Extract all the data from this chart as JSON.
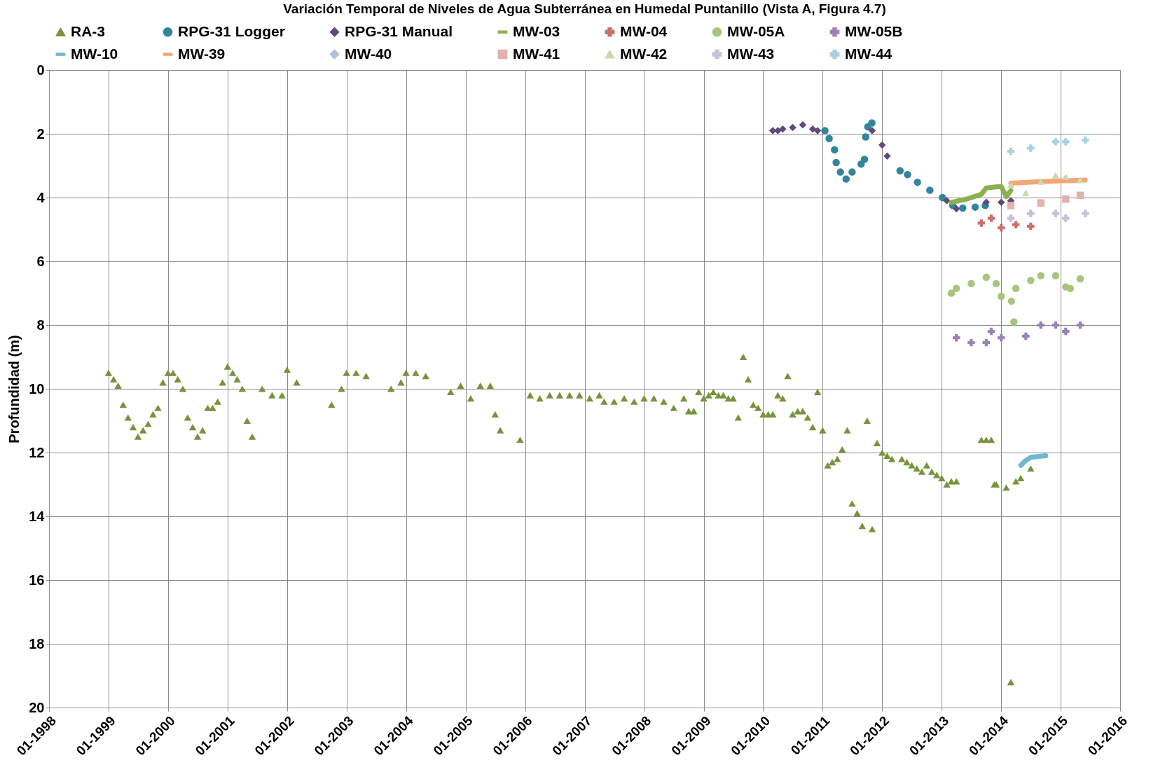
{
  "chart_data": {
    "type": "scatter",
    "title": "Variación Temporal de Niveles de Agua Subterránea en Humedal Puntanillo (Vista A, Figura 4.7)",
    "ylabel": "Profundidad (m)",
    "xlim": [
      "1998-01",
      "2016-01"
    ],
    "xticks": [
      {
        "value": "1998-01",
        "label": "01-1998"
      },
      {
        "value": "1999-01",
        "label": "01-1999"
      },
      {
        "value": "2000-01",
        "label": "01-2000"
      },
      {
        "value": "2001-01",
        "label": "01-2001"
      },
      {
        "value": "2002-01",
        "label": "01-2002"
      },
      {
        "value": "2003-01",
        "label": "01-2003"
      },
      {
        "value": "2004-01",
        "label": "01-2004"
      },
      {
        "value": "2005-01",
        "label": "01-2005"
      },
      {
        "value": "2006-01",
        "label": "01-2006"
      },
      {
        "value": "2007-01",
        "label": "01-2007"
      },
      {
        "value": "2008-01",
        "label": "01-2008"
      },
      {
        "value": "2009-01",
        "label": "01-2009"
      },
      {
        "value": "2010-01",
        "label": "01-2010"
      },
      {
        "value": "2011-01",
        "label": "01-2011"
      },
      {
        "value": "2012-01",
        "label": "01-2012"
      },
      {
        "value": "2013-01",
        "label": "01-2013"
      },
      {
        "value": "2014-01",
        "label": "01-2014"
      },
      {
        "value": "2015-01",
        "label": "01-2015"
      },
      {
        "value": "2016-01",
        "label": "01-2016"
      }
    ],
    "ylim": [
      20,
      0
    ],
    "yticks": [
      0,
      2,
      4,
      6,
      8,
      10,
      12,
      14,
      16,
      18,
      20
    ],
    "grid": true,
    "legend": "top",
    "series": [
      {
        "name": "RA-3",
        "color": "#77933c",
        "marker": "triangle",
        "x": [
          "1999-01",
          "1999-02",
          "1999-03",
          "1999-04",
          "1999-05",
          "1999-06",
          "1999-07",
          "1999-08",
          "1999-09",
          "1999-10",
          "1999-11",
          "1999-12",
          "2000-01",
          "2000-02",
          "2000-03",
          "2000-04",
          "2000-05",
          "2000-06",
          "2000-07",
          "2000-08",
          "2000-09",
          "2000-10",
          "2000-11",
          "2000-12",
          "2001-01",
          "2001-02",
          "2001-03",
          "2001-04",
          "2001-05",
          "2001-06",
          "2001-08",
          "2001-10",
          "2001-12",
          "2002-01",
          "2002-03",
          "2002-10",
          "2002-12",
          "2003-01",
          "2003-03",
          "2003-05",
          "2003-10",
          "2003-12",
          "2004-01",
          "2004-03",
          "2004-05",
          "2004-10",
          "2004-12",
          "2005-02",
          "2005-04",
          "2005-06",
          "2005-07",
          "2005-08",
          "2005-12",
          "2006-02",
          "2006-04",
          "2006-06",
          "2006-08",
          "2006-10",
          "2006-12",
          "2007-02",
          "2007-04",
          "2007-05",
          "2007-07",
          "2007-09",
          "2007-11",
          "2008-01",
          "2008-03",
          "2008-05",
          "2008-07",
          "2008-09",
          "2008-10",
          "2008-11",
          "2008-12",
          "2009-01",
          "2009-02",
          "2009-03",
          "2009-04",
          "2009-05",
          "2009-06",
          "2009-07",
          "2009-08",
          "2009-09",
          "2009-10",
          "2009-11",
          "2009-12",
          "2010-01",
          "2010-02",
          "2010-03",
          "2010-04",
          "2010-05",
          "2010-06",
          "2010-07",
          "2010-08",
          "2010-09",
          "2010-10",
          "2010-11",
          "2010-12",
          "2011-01",
          "2011-02",
          "2011-03",
          "2011-04",
          "2011-05",
          "2011-06",
          "2011-07",
          "2011-08",
          "2011-09",
          "2011-10",
          "2011-11",
          "2011-12",
          "2012-01",
          "2012-02",
          "2012-03",
          "2012-05",
          "2012-06",
          "2012-07",
          "2012-08",
          "2012-09",
          "2012-10",
          "2012-11",
          "2012-12",
          "2013-01",
          "2013-02",
          "2013-03",
          "2013-04",
          "2013-09",
          "2013-10",
          "2013-11",
          "2013-11-20",
          "2013-12",
          "2014-02",
          "2014-03",
          "2014-04",
          "2014-05",
          "2014-07"
        ],
        "values": [
          9.5,
          9.7,
          9.9,
          10.5,
          10.9,
          11.2,
          11.5,
          11.3,
          11.1,
          10.8,
          10.6,
          9.8,
          9.5,
          9.5,
          9.7,
          10.0,
          10.9,
          11.2,
          11.5,
          11.3,
          10.6,
          10.6,
          10.4,
          9.8,
          9.3,
          9.5,
          9.7,
          10.0,
          11.0,
          11.5,
          10.0,
          10.2,
          10.2,
          9.4,
          9.8,
          10.5,
          10.0,
          9.5,
          9.5,
          9.6,
          10.0,
          9.8,
          9.5,
          9.5,
          9.6,
          10.1,
          9.9,
          10.3,
          9.9,
          9.9,
          10.8,
          11.3,
          11.6,
          10.2,
          10.3,
          10.2,
          10.2,
          10.2,
          10.2,
          10.3,
          10.2,
          10.4,
          10.4,
          10.3,
          10.4,
          10.3,
          10.3,
          10.4,
          10.6,
          10.3,
          10.7,
          10.7,
          10.1,
          10.3,
          10.2,
          10.1,
          10.2,
          10.2,
          10.3,
          10.3,
          10.9,
          9.0,
          9.7,
          10.5,
          10.6,
          10.8,
          10.8,
          10.8,
          10.2,
          10.3,
          9.6,
          10.8,
          10.7,
          10.7,
          10.9,
          11.2,
          10.1,
          11.3,
          12.4,
          12.3,
          12.2,
          11.9,
          11.3,
          13.6,
          13.9,
          14.3,
          11.0,
          14.4,
          11.7,
          12.0,
          12.1,
          12.2,
          12.2,
          12.3,
          12.4,
          12.5,
          12.6,
          12.4,
          12.6,
          12.7,
          12.8,
          13.0,
          12.9,
          12.9,
          11.6,
          11.6,
          11.6,
          13.0,
          13.0,
          13.1,
          19.2,
          12.9,
          12.8,
          12.5
        ]
      },
      {
        "name": "RPG-31 Logger",
        "color": "#31859c",
        "marker": "circle",
        "x": [
          "2011-01-15",
          "2011-02-10",
          "2011-03-15",
          "2011-03-25",
          "2011-04-20",
          "2011-05-25",
          "2011-07-01",
          "2011-08-25",
          "2011-09-15",
          "2011-09-22",
          "2011-10-05",
          "2011-10-30",
          "2012-04-20",
          "2012-06-05",
          "2012-08-05",
          "2012-10-20",
          "2013-01-05",
          "2013-03-10",
          "2013-05-10",
          "2013-07-25",
          "2013-09-25"
        ],
        "values": [
          1.9,
          2.15,
          2.5,
          2.9,
          3.2,
          3.42,
          3.2,
          2.95,
          2.8,
          2.1,
          1.78,
          1.66,
          3.16,
          3.28,
          3.52,
          3.77,
          4.0,
          4.25,
          4.33,
          4.3,
          4.25
        ]
      },
      {
        "name": "RPG-31 Manual",
        "color": "#604a7b",
        "marker": "diamond",
        "x": [
          "2010-03",
          "2010-04",
          "2010-05",
          "2010-07",
          "2010-09",
          "2010-11",
          "2010-12",
          "2011-11",
          "2012-01",
          "2012-02",
          "2013-02",
          "2013-04",
          "2013-10",
          "2014-01",
          "2014-03"
        ],
        "values": [
          1.9,
          1.9,
          1.85,
          1.8,
          1.72,
          1.85,
          1.9,
          1.9,
          2.35,
          2.7,
          4.1,
          4.35,
          4.15,
          4.15,
          4.1
        ]
      },
      {
        "name": "MW-03",
        "color": "#8cb04f",
        "type": "line",
        "x": [
          "2013-03",
          "2013-06",
          "2013-09",
          "2013-10",
          "2014-01",
          "2014-02",
          "2014-03"
        ],
        "values": [
          4.15,
          4.05,
          3.9,
          3.7,
          3.65,
          3.97,
          3.78
        ]
      },
      {
        "name": "MW-04",
        "color": "#c9716f",
        "marker": "cross",
        "x": [
          "2013-09",
          "2013-11",
          "2014-01",
          "2014-04",
          "2014-07"
        ],
        "values": [
          4.8,
          4.65,
          4.95,
          4.85,
          4.9
        ]
      },
      {
        "name": "MW-05A",
        "color": "#a9c47f",
        "marker": "circle",
        "x": [
          "2013-03",
          "2013-04",
          "2013-07",
          "2013-10",
          "2013-12",
          "2014-01",
          "2014-03-05",
          "2014-03-20",
          "2014-04",
          "2014-07",
          "2014-09",
          "2014-12",
          "2015-02",
          "2015-03",
          "2015-05"
        ],
        "values": [
          7.0,
          6.85,
          6.7,
          6.5,
          6.7,
          7.1,
          7.25,
          7.9,
          6.85,
          6.6,
          6.45,
          6.45,
          6.8,
          6.85,
          6.55
        ]
      },
      {
        "name": "MW-05B",
        "color": "#9983b5",
        "marker": "cross",
        "x": [
          "2013-04",
          "2013-07",
          "2013-10",
          "2013-11",
          "2014-01",
          "2014-06",
          "2014-09",
          "2014-12",
          "2015-02",
          "2015-05"
        ],
        "values": [
          8.4,
          8.55,
          8.55,
          8.2,
          8.4,
          8.35,
          8.0,
          8.0,
          8.2,
          8.0
        ]
      },
      {
        "name": "MW-10",
        "color": "#6fb8d0",
        "type": "line",
        "x": [
          "2014-05",
          "2014-06",
          "2014-07",
          "2014-10"
        ],
        "values": [
          12.4,
          12.25,
          12.15,
          12.1
        ]
      },
      {
        "name": "MW-39",
        "color": "#f5a672",
        "type": "line",
        "x": [
          "2014-03",
          "2014-09",
          "2015-06"
        ],
        "values": [
          3.55,
          3.5,
          3.45
        ]
      },
      {
        "name": "MW-40",
        "color": "#b3bfdf",
        "marker": "diamond"
      },
      {
        "name": "MW-41",
        "color": "#e2b1b0",
        "marker": "square",
        "x": [
          "2014-03",
          "2014-09",
          "2015-02",
          "2015-05"
        ],
        "values": [
          4.25,
          4.17,
          4.05,
          3.93
        ]
      },
      {
        "name": "MW-42",
        "color": "#c9d9b0",
        "marker": "triangle",
        "x": [
          "2014-03",
          "2014-06",
          "2014-09",
          "2014-12",
          "2015-02",
          "2015-05"
        ],
        "values": [
          3.6,
          3.85,
          3.5,
          3.3,
          3.35,
          3.45
        ]
      },
      {
        "name": "MW-43",
        "color": "#c6c0da",
        "marker": "cross",
        "x": [
          "2014-03",
          "2014-07",
          "2014-12",
          "2015-02",
          "2015-06"
        ],
        "values": [
          4.65,
          4.5,
          4.5,
          4.65,
          4.5
        ]
      },
      {
        "name": "MW-44",
        "color": "#a8d1df",
        "marker": "cross",
        "x": [
          "2014-03",
          "2014-07",
          "2014-12",
          "2015-02",
          "2015-06"
        ],
        "values": [
          2.55,
          2.45,
          2.25,
          2.25,
          2.2
        ]
      }
    ]
  }
}
